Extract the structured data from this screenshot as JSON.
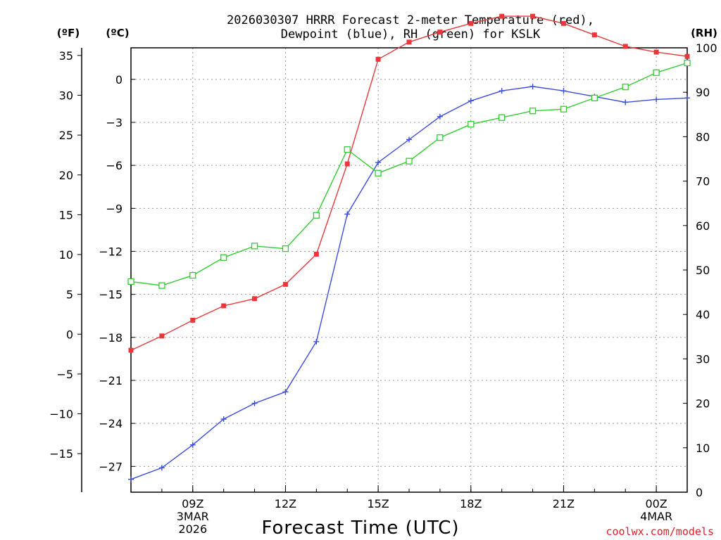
{
  "chart_data": {
    "type": "line",
    "title": [
      "2026030307 HRRR Forecast 2-meter Temperature (red),",
      "Dewpoint (blue), RH (green) for KSLK"
    ],
    "xlabel": "Forecast Time (UTC)",
    "units": {
      "fahrenheit": "(ºF)",
      "celsius": "(ºC)",
      "rh": "(RH)"
    },
    "credit": "coolwx.com/models",
    "x": [
      7,
      8,
      9,
      10,
      11,
      12,
      13,
      14,
      15,
      16,
      17,
      18,
      19,
      20,
      21,
      22,
      23,
      24,
      25
    ],
    "xlim": [
      7,
      25
    ],
    "x_ticks": [
      {
        "x": 9,
        "lines": [
          "09Z",
          "3MAR",
          "2026"
        ]
      },
      {
        "x": 12,
        "lines": [
          "12Z"
        ]
      },
      {
        "x": 15,
        "lines": [
          "15Z"
        ]
      },
      {
        "x": 18,
        "lines": [
          "18Z"
        ]
      },
      {
        "x": 21,
        "lines": [
          "21Z"
        ]
      },
      {
        "x": 24,
        "lines": [
          "00Z",
          "4MAR"
        ]
      }
    ],
    "left_celsius_axis": {
      "ylim": [
        -28.8,
        2.2
      ],
      "ticks": [
        "0",
        "−3",
        "−6",
        "−9",
        "−12",
        "−15",
        "−18",
        "−21",
        "−24",
        "−27"
      ],
      "tick_values": [
        0,
        -3,
        -6,
        -9,
        -12,
        -15,
        -18,
        -21,
        -24,
        -27
      ]
    },
    "left_fahrenheit_axis": {
      "ticks": [
        "35",
        "30",
        "25",
        "20",
        "15",
        "10",
        "5",
        "0",
        "−5",
        "−10",
        "−15"
      ],
      "tick_values": [
        35,
        30,
        25,
        20,
        15,
        10,
        5,
        0,
        -5,
        -10,
        -15
      ]
    },
    "right_rh_axis": {
      "ylim": [
        0,
        100
      ],
      "ticks": [
        "100",
        "90",
        "80",
        "70",
        "60",
        "50",
        "40",
        "30",
        "20",
        "10",
        "0"
      ],
      "tick_values": [
        100,
        90,
        80,
        70,
        60,
        50,
        40,
        30,
        20,
        10,
        0
      ]
    },
    "series": [
      {
        "name": "Temperature",
        "color": "#e8383a",
        "marker": "filled-square",
        "axis": "celsius",
        "values": [
          -18.9,
          -17.9,
          -16.8,
          -15.8,
          -15.3,
          -14.3,
          -12.2,
          -5.9,
          1.4,
          2.6,
          3.3,
          3.9,
          4.4,
          4.4,
          3.9,
          3.1,
          2.3,
          1.9,
          1.6
        ]
      },
      {
        "name": "Dewpoint",
        "color": "#3c4de0",
        "marker": "plus",
        "axis": "celsius",
        "values": [
          -27.9,
          -27.1,
          -25.5,
          -23.7,
          -22.6,
          -21.8,
          -18.3,
          -9.4,
          -5.8,
          -4.2,
          -2.6,
          -1.5,
          -0.8,
          -0.5,
          -0.8,
          -1.2,
          -1.6,
          -1.4,
          -1.3
        ]
      },
      {
        "name": "RH",
        "color": "#33cc33",
        "marker": "open-square",
        "axis": "rh",
        "values": [
          47.4,
          46.5,
          48.8,
          52.8,
          55.4,
          54.8,
          62.3,
          77.1,
          71.8,
          74.5,
          79.8,
          82.8,
          84.3,
          85.8,
          86.2,
          88.7,
          91.2,
          94.4,
          96.6
        ]
      }
    ]
  }
}
